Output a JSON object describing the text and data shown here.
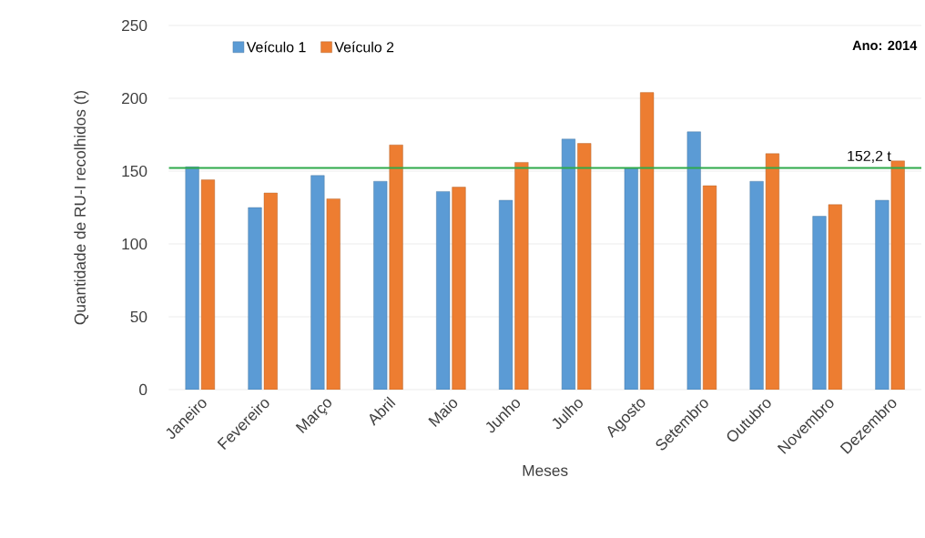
{
  "chart_data": {
    "type": "bar",
    "xlabel": "Meses",
    "ylabel": "Quantidade de RU-I recolhidos (t)",
    "categories": [
      "Janeiro",
      "Fevereiro",
      "Março",
      "Abril",
      "Maio",
      "Junho",
      "Julho",
      "Agosto",
      "Setembro",
      "Outubro",
      "Novembro",
      "Dezembro"
    ],
    "series": [
      {
        "name": "Veículo 1",
        "color": "#5b9bd5",
        "values": [
          153,
          125,
          147,
          143,
          136,
          130,
          172,
          152,
          177,
          143,
          119,
          130
        ]
      },
      {
        "name": "Veículo 2",
        "color": "#ed7d31",
        "values": [
          144,
          135,
          131,
          168,
          139,
          156,
          169,
          204,
          140,
          162,
          127,
          157
        ]
      }
    ],
    "ylim": [
      0,
      250
    ],
    "yticks": [
      0,
      50,
      100,
      150,
      200,
      250
    ],
    "grid": "y",
    "legend": "top left",
    "ref_lines": [
      {
        "axis": "y",
        "value": 152.2,
        "label": "152,2 t",
        "color": "#2eaa4a"
      }
    ],
    "annotations": [
      "Ano: 2014"
    ]
  }
}
